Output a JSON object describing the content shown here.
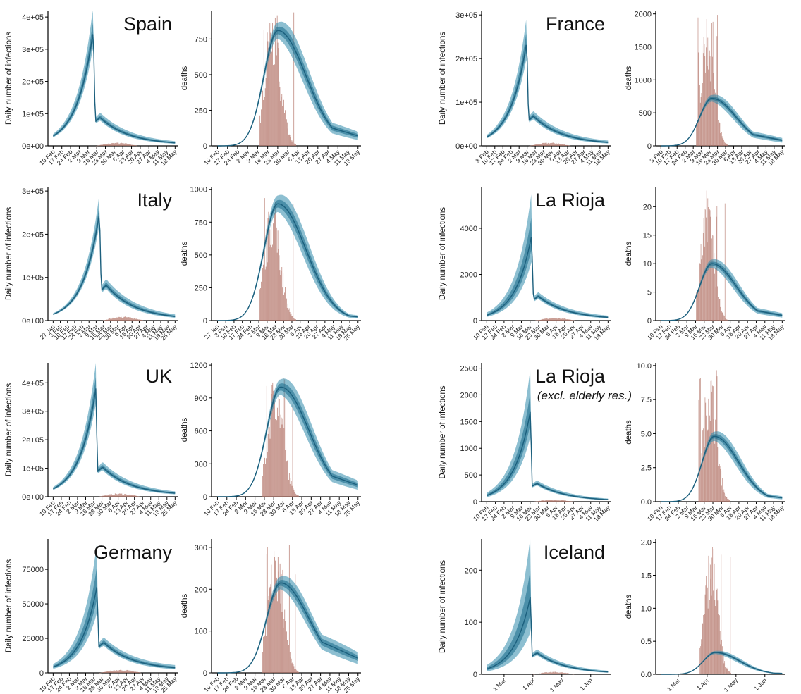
{
  "colors": {
    "band_outer": "#2f8bab",
    "band_inner": "#1f6f8e",
    "line": "#1b5f7d",
    "bars": "#b4766a",
    "axis": "#000000"
  },
  "chart_data": [
    {
      "type": "area",
      "panel": "infections",
      "title": "Spain",
      "ylabel": "Daily number of infections",
      "ylim": [
        0,
        420000
      ],
      "yticks": [
        0,
        100000,
        200000,
        300000,
        400000
      ],
      "ytick_labels": [
        "0e+00",
        "1e+05",
        "2e+05",
        "3e+05",
        "4e+05"
      ],
      "xticks": [
        "10 Feb",
        "17 Feb",
        "24 Feb",
        "2 Mar",
        "9 Mar",
        "16 Mar",
        "23 Mar",
        "30 Mar",
        "6 Apr",
        "13 Apr",
        "20 Apr",
        "27 Apr",
        "4 May",
        "11 May",
        "18 May"
      ],
      "peak": 360000,
      "peak_hi": 440000,
      "rebound": 85000,
      "end": 3000
    },
    {
      "type": "bar",
      "panel": "deaths",
      "ylabel": "deaths",
      "ylim": [
        0,
        950
      ],
      "yticks": [
        0,
        250,
        500,
        750
      ],
      "ytick_labels": [
        "0",
        "250",
        "500",
        "750"
      ],
      "xticks": [
        "10 Feb",
        "17 Feb",
        "24 Feb",
        "2 Mar",
        "9 Mar",
        "16 Mar",
        "23 Mar",
        "30 Mar",
        "6 Apr",
        "13 Apr",
        "20 Apr",
        "27 Apr",
        "4 May",
        "11 May",
        "18 May"
      ],
      "model_peak": 810,
      "model_end": 100,
      "bar_peak": 950
    },
    {
      "type": "area",
      "panel": "infections",
      "title": "France",
      "ylabel": "Daily number of infections",
      "ylim": [
        0,
        310000
      ],
      "yticks": [
        0,
        100000,
        200000,
        300000
      ],
      "ytick_labels": [
        "0e+00",
        "1e+05",
        "2e+05",
        "3e+05"
      ],
      "xticks": [
        "3 Feb",
        "10 Feb",
        "17 Feb",
        "24 Feb",
        "2 Mar",
        "9 Mar",
        "16 Mar",
        "23 Mar",
        "30 Mar",
        "6 Apr",
        "13 Apr",
        "20 Apr",
        "27 Apr",
        "4 May",
        "11 May",
        "18 May"
      ],
      "peak": 240000,
      "peak_hi": 300000,
      "rebound": 65000,
      "end": 3000
    },
    {
      "type": "bar",
      "panel": "deaths",
      "ylabel": "deaths",
      "ylim": [
        0,
        2050
      ],
      "yticks": [
        0,
        500,
        1000,
        1500,
        2000
      ],
      "ytick_labels": [
        "0",
        "500",
        "1000",
        "1500",
        "2000"
      ],
      "xticks": [
        "3 Feb",
        "10 Feb",
        "17 Feb",
        "24 Feb",
        "2 Mar",
        "9 Mar",
        "16 Mar",
        "23 Mar",
        "30 Mar",
        "6 Apr",
        "13 Apr",
        "20 Apr",
        "27 Apr",
        "4 May",
        "11 May",
        "18 May"
      ],
      "model_peak": 720,
      "model_end": 120,
      "bar_peak": 2000
    },
    {
      "type": "area",
      "panel": "infections",
      "title": "Italy",
      "ylabel": "Daily number of infections",
      "ylim": [
        0,
        310000
      ],
      "yticks": [
        0,
        100000,
        200000,
        300000
      ],
      "ytick_labels": [
        "0e+00",
        "1e+05",
        "2e+05",
        "3e+05"
      ],
      "xticks": [
        "27 Jan",
        "3 Feb",
        "10 Feb",
        "17 Feb",
        "24 Feb",
        "2 Mar",
        "9 Mar",
        "16 Mar",
        "23 Mar",
        "30 Mar",
        "6 Apr",
        "13 Apr",
        "20 Apr",
        "27 Apr",
        "4 May",
        "11 May",
        "18 May",
        "25 May"
      ],
      "peak": 250000,
      "peak_hi": 295000,
      "rebound": 80000,
      "end": 2000
    },
    {
      "type": "bar",
      "panel": "deaths",
      "ylabel": "deaths",
      "ylim": [
        0,
        1020
      ],
      "yticks": [
        0,
        250,
        500,
        750,
        1000
      ],
      "ytick_labels": [
        "0",
        "250",
        "500",
        "750",
        "1000"
      ],
      "xticks": [
        "27 Jan",
        "3 Feb",
        "10 Feb",
        "17 Feb",
        "24 Feb",
        "2 Mar",
        "9 Mar",
        "16 Mar",
        "23 Mar",
        "30 Mar",
        "6 Apr",
        "13 Apr",
        "20 Apr",
        "27 Apr",
        "4 May",
        "11 May",
        "18 May",
        "25 May"
      ],
      "model_peak": 890,
      "model_end": 40,
      "bar_peak": 975
    },
    {
      "type": "area",
      "panel": "infections",
      "title": "La Rioja",
      "ylabel": "Daily number of infections",
      "ylim": [
        0,
        5800
      ],
      "yticks": [
        0,
        2000,
        4000
      ],
      "ytick_labels": [
        "0",
        "2000",
        "4000"
      ],
      "xticks": [
        "10 Feb",
        "17 Feb",
        "24 Feb",
        "2 Mar",
        "9 Mar",
        "16 Mar",
        "23 Mar",
        "30 Mar",
        "6 Apr",
        "13 Apr",
        "20 Apr",
        "27 Apr",
        "4 May",
        "11 May",
        "18 May"
      ],
      "peak": 3700,
      "peak_hi": 5600,
      "rebound": 1000,
      "end": 50
    },
    {
      "type": "bar",
      "panel": "deaths",
      "ylabel": "deaths",
      "ylim": [
        0,
        23.5
      ],
      "yticks": [
        0,
        5,
        10,
        15,
        20
      ],
      "ytick_labels": [
        "0",
        "5",
        "10",
        "15",
        "20"
      ],
      "xticks": [
        "10 Feb",
        "17 Feb",
        "24 Feb",
        "2 Mar",
        "9 Mar",
        "16 Mar",
        "23 Mar",
        "30 Mar",
        "6 Apr",
        "13 Apr",
        "20 Apr",
        "27 Apr",
        "4 May",
        "11 May",
        "18 May"
      ],
      "model_peak": 10,
      "model_end": 1.3,
      "bar_peak": 23
    },
    {
      "type": "area",
      "panel": "infections",
      "title": "UK",
      "ylabel": "Daily number of infections",
      "ylim": [
        0,
        470000
      ],
      "yticks": [
        0,
        100000,
        200000,
        300000,
        400000
      ],
      "ytick_labels": [
        "0e+00",
        "1e+05",
        "2e+05",
        "3e+05",
        "4e+05"
      ],
      "xticks": [
        "10 Feb",
        "17 Feb",
        "24 Feb",
        "2 Mar",
        "9 Mar",
        "16 Mar",
        "23 Mar",
        "30 Mar",
        "6 Apr",
        "13 Apr",
        "20 Apr",
        "27 Apr",
        "4 May",
        "11 May",
        "18 May",
        "25 May"
      ],
      "peak": 380000,
      "peak_hi": 470000,
      "rebound": 100000,
      "end": 4000
    },
    {
      "type": "bar",
      "panel": "deaths",
      "ylabel": "deaths",
      "ylim": [
        0,
        1220
      ],
      "yticks": [
        0,
        300,
        600,
        900,
        1200
      ],
      "ytick_labels": [
        "0",
        "300",
        "600",
        "900",
        "1200"
      ],
      "xticks": [
        "10 Feb",
        "17 Feb",
        "24 Feb",
        "2 Mar",
        "9 Mar",
        "16 Mar",
        "23 Mar",
        "30 Mar",
        "6 Apr",
        "13 Apr",
        "20 Apr",
        "27 Apr",
        "4 May",
        "11 May",
        "18 May",
        "25 May"
      ],
      "model_peak": 1000,
      "model_end": 150,
      "bar_peak": 1170
    },
    {
      "type": "area",
      "panel": "infections",
      "title": "La Rioja",
      "subtitle": "(excl. elderly res.)",
      "ylabel": "Daily number of infections",
      "ylim": [
        0,
        2600
      ],
      "yticks": [
        0,
        500,
        1000,
        1500,
        2000,
        2500
      ],
      "ytick_labels": [
        "0",
        "500",
        "1000",
        "1500",
        "2000",
        "2500"
      ],
      "xticks": [
        "10 Feb",
        "17 Feb",
        "24 Feb",
        "2 Mar",
        "9 Mar",
        "16 Mar",
        "23 Mar",
        "30 Mar",
        "6 Apr",
        "13 Apr",
        "20 Apr",
        "27 Apr",
        "4 May",
        "11 May",
        "18 May"
      ],
      "peak": 1700,
      "peak_hi": 2500,
      "rebound": 330,
      "end": 10
    },
    {
      "type": "bar",
      "panel": "deaths",
      "ylabel": "deaths",
      "ylim": [
        0,
        10.2
      ],
      "yticks": [
        0,
        2.5,
        5,
        7.5,
        10
      ],
      "ytick_labels": [
        "0.0",
        "2.5",
        "5.0",
        "7.5",
        "10.0"
      ],
      "xticks": [
        "10 Feb",
        "17 Feb",
        "24 Feb",
        "2 Mar",
        "9 Mar",
        "16 Mar",
        "23 Mar",
        "30 Mar",
        "6 Apr",
        "13 Apr",
        "20 Apr",
        "27 Apr",
        "4 May",
        "11 May",
        "18 May"
      ],
      "model_peak": 4.8,
      "model_end": 0.4,
      "bar_peak": 10
    },
    {
      "type": "area",
      "panel": "infections",
      "title": "Germany",
      "ylabel": "Daily number of infections",
      "ylim": [
        0,
        97000
      ],
      "yticks": [
        0,
        25000,
        50000,
        75000
      ],
      "ytick_labels": [
        "0",
        "25000",
        "50000",
        "75000"
      ],
      "xticks": [
        "10 Feb",
        "17 Feb",
        "24 Feb",
        "2 Mar",
        "9 Mar",
        "16 Mar",
        "23 Mar",
        "30 Mar",
        "6 Apr",
        "13 Apr",
        "20 Apr",
        "27 Apr",
        "4 May",
        "11 May",
        "18 May",
        "25 May"
      ],
      "peak": 63000,
      "peak_hi": 95000,
      "rebound": 20000,
      "end": 2000
    },
    {
      "type": "bar",
      "panel": "deaths",
      "ylabel": "deaths",
      "ylim": [
        0,
        320
      ],
      "yticks": [
        0,
        100,
        200,
        300
      ],
      "ytick_labels": [
        "0",
        "100",
        "200",
        "300"
      ],
      "xticks": [
        "10 Feb",
        "17 Feb",
        "24 Feb",
        "2 Mar",
        "9 Mar",
        "16 Mar",
        "23 Mar",
        "30 Mar",
        "6 Apr",
        "13 Apr",
        "20 Apr",
        "27 Apr",
        "4 May",
        "11 May",
        "18 May",
        "25 May"
      ],
      "model_peak": 215,
      "model_end": 50,
      "bar_peak": 315
    },
    {
      "type": "area",
      "panel": "infections",
      "title": "Iceland",
      "ylabel": "Daily number of infections",
      "ylim": [
        0,
        260
      ],
      "yticks": [
        0,
        100,
        200
      ],
      "ytick_labels": [
        "0",
        "100",
        "200"
      ],
      "xticks": [
        "1 Mar",
        "1 Apr",
        "1 May",
        "1 Jun"
      ],
      "peak": 150,
      "peak_hi": 265,
      "rebound": 40,
      "end": 1
    },
    {
      "type": "bar",
      "panel": "deaths",
      "ylabel": "deaths",
      "ylim": [
        0,
        2.05
      ],
      "yticks": [
        0,
        0.5,
        1,
        1.5,
        2
      ],
      "ytick_labels": [
        "0.0",
        "0.5",
        "1.0",
        "1.5",
        "2.0"
      ],
      "xticks": [
        "1 Mar",
        "1 Apr",
        "1 May",
        "1 Jun"
      ],
      "model_peak": 0.33,
      "model_end": 0.02,
      "bar_peak": 2
    }
  ]
}
